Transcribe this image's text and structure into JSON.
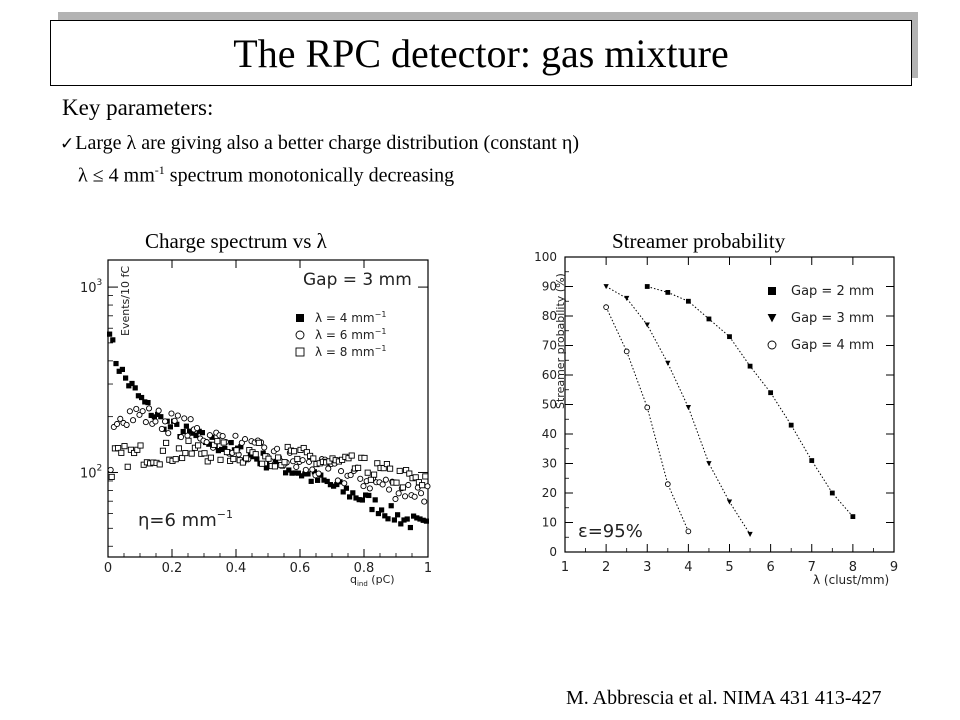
{
  "title": "The RPC detector: gas mixture",
  "key_params": {
    "heading": "Key parameters:",
    "bullet1_pre": "Large ",
    "bullet1_lambda": "λ",
    "bullet1_mid": " are giving also a better charge distribution (constant ",
    "bullet1_eta": "η",
    "bullet1_post": ")",
    "bullet2_lambda": "λ",
    "bullet2_mid": " ≤ 4 mm",
    "bullet2_sup": "-1",
    "bullet2_post": " spectrum monotonically decreasing"
  },
  "left_caption": "Charge spectrum vs λ",
  "right_caption": "Streamer probability",
  "citation": "M. Abbrescia et al. NIMA 431 413-427",
  "chart_data": [
    {
      "type": "scatter",
      "ylabel": "Events/10 fC",
      "xlabel": "q_ind (pC)",
      "xlabel_main": "q",
      "xlabel_sub": "ind",
      "xlabel_post": " (pC)",
      "xlim": [
        0,
        1
      ],
      "ylim": [
        35,
        1400
      ],
      "yscale": "log",
      "xticks": [
        "0",
        "0.2",
        "0.4",
        "0.6",
        "0.8",
        "1"
      ],
      "yticks": [
        {
          "base": "10",
          "exp": "3",
          "value": 1000
        },
        {
          "base": "10",
          "exp": "2",
          "value": 100
        }
      ],
      "annotation_gap": "Gap = 3 mm",
      "annotation_eta": "η=6 mm",
      "annotation_eta_exp": "−1",
      "legend": [
        {
          "label": "λ = 4 mm",
          "exp": "−1",
          "marker": "filled-square"
        },
        {
          "label": "λ = 6 mm",
          "exp": "−1",
          "marker": "open-circle"
        },
        {
          "label": "λ = 8 mm",
          "exp": "−1",
          "marker": "open-square"
        }
      ],
      "series": [
        {
          "name": "λ = 4 mm⁻¹",
          "marker": "filled-square",
          "x": [
            0.0,
            0.02,
            0.05,
            0.1,
            0.15,
            0.2,
            0.3,
            0.4,
            0.5,
            0.6,
            0.7,
            0.8,
            0.9,
            1.0
          ],
          "y": [
            700,
            420,
            330,
            250,
            200,
            175,
            150,
            130,
            115,
            100,
            85,
            72,
            58,
            50
          ]
        },
        {
          "name": "λ = 6 mm⁻¹",
          "marker": "open-circle",
          "x": [
            0.0,
            0.02,
            0.1,
            0.2,
            0.3,
            0.4,
            0.5,
            0.6,
            0.7,
            0.8,
            0.9,
            1.0
          ],
          "y": [
            55,
            210,
            205,
            185,
            160,
            140,
            125,
            110,
            100,
            92,
            82,
            78
          ]
        },
        {
          "name": "λ = 8 mm⁻¹",
          "marker": "open-square",
          "x": [
            0.0,
            0.02,
            0.1,
            0.2,
            0.3,
            0.4,
            0.5,
            0.6,
            0.7,
            0.8,
            0.9,
            1.0
          ],
          "y": [
            55,
            120,
            125,
            128,
            130,
            128,
            125,
            120,
            112,
            105,
            95,
            85
          ]
        }
      ]
    },
    {
      "type": "scatter",
      "ylabel": "Streamer probability (%)",
      "xlabel": "λ (clust/mm)",
      "xlim": [
        1,
        9
      ],
      "ylim": [
        0,
        100
      ],
      "xticks": [
        1,
        2,
        3,
        4,
        5,
        6,
        7,
        8,
        9
      ],
      "yticks": [
        0,
        10,
        20,
        30,
        40,
        50,
        60,
        70,
        80,
        90,
        100
      ],
      "annotation": "ε=95%",
      "legend": [
        {
          "label": "Gap = 2 mm",
          "marker": "filled-square"
        },
        {
          "label": "Gap = 3 mm",
          "marker": "filled-triangle-down"
        },
        {
          "label": "Gap = 4 mm",
          "marker": "open-circle"
        }
      ],
      "series": [
        {
          "name": "Gap = 2 mm",
          "marker": "filled-square",
          "x": [
            3,
            3.5,
            4,
            4.5,
            5,
            5.5,
            6,
            6.5,
            7,
            7.5,
            8
          ],
          "y": [
            90,
            88,
            85,
            79,
            73,
            63,
            54,
            43,
            31,
            20,
            12
          ]
        },
        {
          "name": "Gap = 3 mm",
          "marker": "filled-triangle-down",
          "x": [
            2,
            2.5,
            3,
            3.5,
            4,
            4.5,
            5,
            5.5
          ],
          "y": [
            90,
            86,
            77,
            64,
            49,
            30,
            17,
            6
          ]
        },
        {
          "name": "Gap = 4 mm",
          "marker": "open-circle",
          "x": [
            2,
            2.5,
            3,
            3.5,
            4
          ],
          "y": [
            83,
            68,
            49,
            23,
            7
          ]
        }
      ]
    }
  ]
}
